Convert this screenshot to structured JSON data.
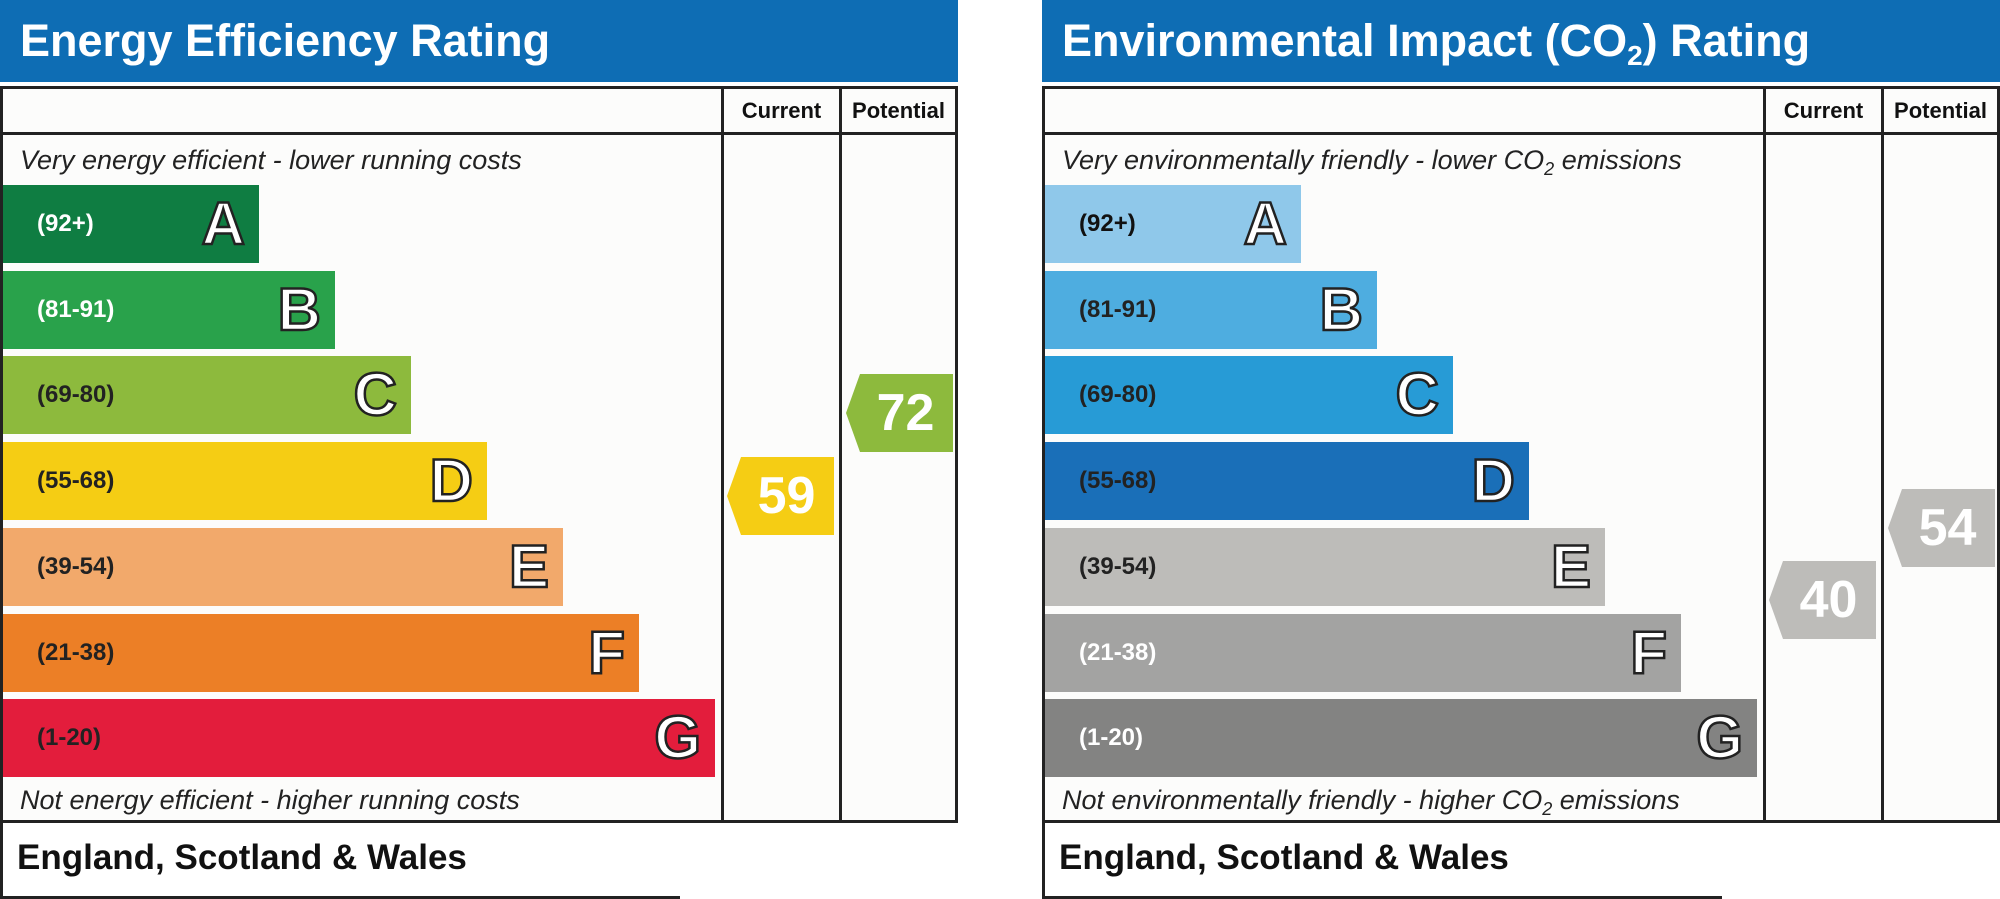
{
  "charts": [
    {
      "title_main": "Energy Efficiency Rating",
      "title_sub": "",
      "title_tail": "",
      "col_current": "Current",
      "col_potential": "Potential",
      "top_caption": {
        "main": "Very energy efficient - lower running costs",
        "sub": "",
        "tail": ""
      },
      "bottom_caption": {
        "main": "Not energy efficient - higher running costs",
        "sub": "",
        "tail": ""
      },
      "footer": "England, Scotland & Wales"
    },
    {
      "title_main": "Environmental Impact (CO",
      "title_sub": "2",
      "title_tail": ") Rating",
      "col_current": "Current",
      "col_potential": "Potential",
      "top_caption": {
        "main": "Very environmentally friendly - lower CO",
        "sub": "2",
        "tail": " emissions"
      },
      "bottom_caption": {
        "main": "Not environmentally friendly - higher CO",
        "sub": "2",
        "tail": " emissions"
      },
      "footer": "England, Scotland & Wales"
    }
  ],
  "chart_data": [
    {
      "type": "bar",
      "title": "Energy Efficiency Rating",
      "bands": [
        {
          "letter": "A",
          "range": "(92+)",
          "color": "#0f7d42",
          "text_color": "#ffffff"
        },
        {
          "letter": "B",
          "range": "(81-91)",
          "color": "#29a24b",
          "text_color": "#ffffff"
        },
        {
          "letter": "C",
          "range": "(69-80)",
          "color": "#8dba3d",
          "text_color": "#222222"
        },
        {
          "letter": "D",
          "range": "(55-68)",
          "color": "#f5cd14",
          "text_color": "#222222"
        },
        {
          "letter": "E",
          "range": "(39-54)",
          "color": "#f2a96b",
          "text_color": "#222222"
        },
        {
          "letter": "F",
          "range": "(21-38)",
          "color": "#ec7f26",
          "text_color": "#222222"
        },
        {
          "letter": "G",
          "range": "(1-20)",
          "color": "#e31d3c",
          "text_color": "#222222"
        }
      ],
      "current": {
        "value": 59,
        "color": "#f5cd14"
      },
      "potential": {
        "value": 72,
        "color": "#8dba3d"
      }
    },
    {
      "type": "bar",
      "title": "Environmental Impact (CO2) Rating",
      "bands": [
        {
          "letter": "A",
          "range": "(92+)",
          "color": "#8fc8ea",
          "text_color": "#111111"
        },
        {
          "letter": "B",
          "range": "(81-91)",
          "color": "#4eade0",
          "text_color": "#222222"
        },
        {
          "letter": "C",
          "range": "(69-80)",
          "color": "#279bd6",
          "text_color": "#222222"
        },
        {
          "letter": "D",
          "range": "(55-68)",
          "color": "#1a6fb8",
          "text_color": "#222222"
        },
        {
          "letter": "E",
          "range": "(39-54)",
          "color": "#bdbcb9",
          "text_color": "#222222"
        },
        {
          "letter": "F",
          "range": "(21-38)",
          "color": "#a3a3a2",
          "text_color": "#ffffff"
        },
        {
          "letter": "G",
          "range": "(1-20)",
          "color": "#838382",
          "text_color": "#ffffff"
        }
      ],
      "current": {
        "value": 40,
        "color": "#bdbcb9"
      },
      "potential": {
        "value": 54,
        "color": "#bdbcb9"
      }
    }
  ]
}
